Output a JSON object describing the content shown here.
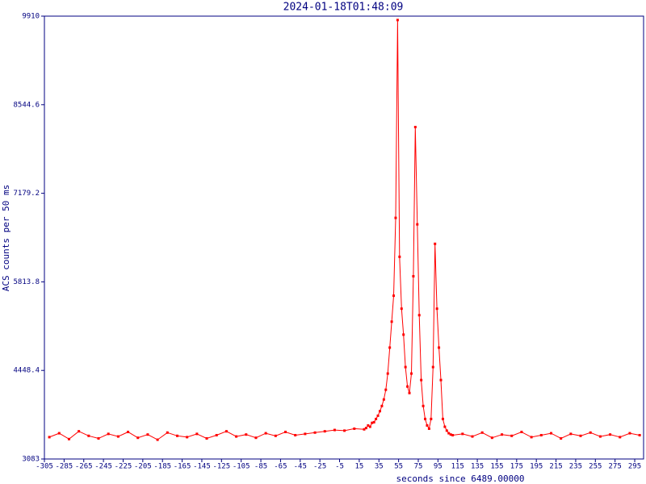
{
  "chart_data": {
    "type": "line",
    "title": "2024-01-18T01:48:09",
    "xlabel": "seconds since 6489.00000",
    "ylabel": "ACS counts per 50 ms",
    "x": [
      -300,
      -290,
      -280,
      -270,
      -260,
      -250,
      -240,
      -230,
      -220,
      -210,
      -200,
      -190,
      -180,
      -170,
      -160,
      -150,
      -140,
      -130,
      -120,
      -110,
      -100,
      -90,
      -80,
      -70,
      -60,
      -50,
      -40,
      -30,
      -20,
      -10,
      0,
      10,
      20,
      22,
      24,
      26,
      28,
      30,
      32,
      34,
      36,
      38,
      40,
      42,
      44,
      46,
      48,
      50,
      52,
      54,
      56,
      58,
      60,
      62,
      64,
      66,
      68,
      70,
      72,
      74,
      76,
      78,
      80,
      82,
      84,
      86,
      88,
      90,
      92,
      94,
      96,
      98,
      100,
      102,
      104,
      106,
      108,
      110,
      120,
      130,
      140,
      150,
      160,
      170,
      180,
      190,
      200,
      210,
      220,
      230,
      240,
      250,
      260,
      270,
      280,
      290,
      300
    ],
    "series": [
      {
        "name": "ACS counts",
        "color": "#ff0000",
        "values": [
          3420,
          3480,
          3390,
          3510,
          3440,
          3400,
          3470,
          3430,
          3500,
          3410,
          3460,
          3380,
          3490,
          3440,
          3420,
          3470,
          3400,
          3450,
          3510,
          3430,
          3460,
          3410,
          3480,
          3440,
          3500,
          3450,
          3470,
          3490,
          3510,
          3530,
          3520,
          3550,
          3540,
          3560,
          3600,
          3580,
          3640,
          3650,
          3700,
          3750,
          3820,
          3900,
          4000,
          4150,
          4400,
          4800,
          5200,
          5600,
          6800,
          9850,
          6200,
          5400,
          5000,
          4500,
          4200,
          4100,
          4400,
          5900,
          8200,
          6700,
          5300,
          4300,
          3900,
          3700,
          3600,
          3550,
          3700,
          4500,
          6400,
          5400,
          4800,
          4300,
          3700,
          3580,
          3520,
          3480,
          3460,
          3450,
          3470,
          3430,
          3490,
          3410,
          3460,
          3440,
          3500,
          3420,
          3450,
          3480,
          3400,
          3470,
          3440,
          3490,
          3430,
          3460,
          3420,
          3480,
          3450
        ]
      }
    ],
    "xlim": [
      -305,
      304
    ],
    "ylim": [
      3083,
      9910
    ],
    "xticks": [
      -305,
      -285,
      -265,
      -245,
      -225,
      -205,
      -185,
      -165,
      -145,
      -125,
      -105,
      -85,
      -65,
      -45,
      -25,
      -5,
      15,
      35,
      55,
      75,
      95,
      115,
      135,
      155,
      175,
      195,
      215,
      235,
      255,
      275,
      295
    ],
    "yticks": [
      3083,
      4448.4,
      5813.8,
      7179.2,
      8544.6,
      9910
    ],
    "frame_color": "#000080"
  }
}
